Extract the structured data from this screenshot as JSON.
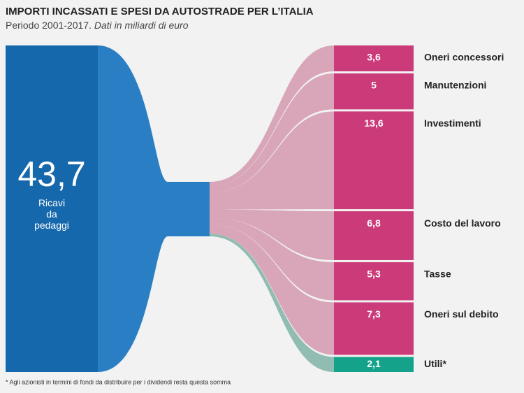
{
  "chart_data": {
    "type": "sankey",
    "title": "IMPORTI INCASSATI E SPESI DA AUTOSTRADE PER L’ITALIA",
    "subtitle": "Periodo 2001-2017.",
    "subtitle_italic": "Dati in miliardi di euro",
    "source": {
      "name": "Ricavi da pedaggi",
      "value": 43.7,
      "value_label": "43,7",
      "color": "#1668ac",
      "neck_color": "#2a7fc4"
    },
    "categories": [
      "Oneri concessori",
      "Manutenzioni",
      "Investimenti",
      "Costo del lavoro",
      "Tasse",
      "Oneri sul debito",
      "Utili*"
    ],
    "values": [
      3.6,
      5,
      13.6,
      6.8,
      5.3,
      7.3,
      2.1
    ],
    "value_labels": [
      "3,6",
      "5",
      "13,6",
      "6,8",
      "5,3",
      "7,3",
      "2,1"
    ],
    "colors": [
      "#cc3b79",
      "#cc3b79",
      "#cc3b79",
      "#cc3b79",
      "#cc3b79",
      "#cc3b79",
      "#14a38a"
    ],
    "flow_colors": [
      "#b84a72",
      "#b84a72",
      "#b84a72",
      "#b84a72",
      "#b84a72",
      "#b84a72",
      "#6faa9c"
    ],
    "footnote": "* Agli azionisti in termini di fondi da distribuire per i dividendi resta questa somma"
  }
}
